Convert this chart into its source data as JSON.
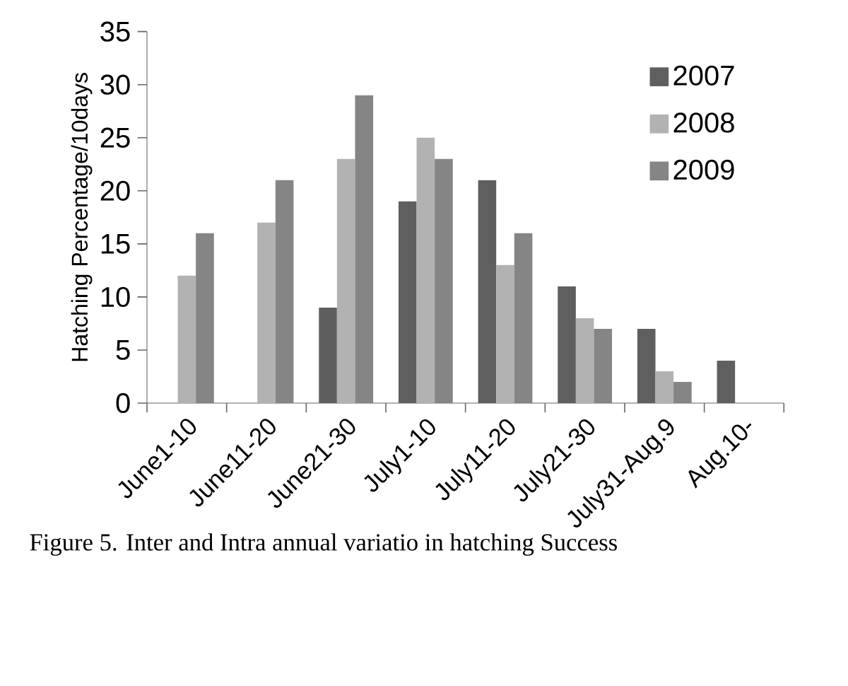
{
  "chart_data": {
    "type": "bar",
    "ylabel": "Hatching Percentage/10days",
    "categories": [
      "June1-10",
      "June11-20",
      "June21-30",
      "July1-10",
      "July11-20",
      "July21-30",
      "July31-Aug.9",
      "Aug.10-"
    ],
    "series": [
      {
        "name": "2007",
        "color": "#5f5f5f",
        "values": [
          null,
          null,
          9,
          19,
          21,
          11,
          7,
          4
        ]
      },
      {
        "name": "2008",
        "color": "#b2b2b2",
        "values": [
          12,
          17,
          23,
          25,
          13,
          8,
          3,
          null
        ]
      },
      {
        "name": "2009",
        "color": "#858585",
        "values": [
          16,
          21,
          29,
          23,
          16,
          7,
          2,
          null
        ]
      }
    ],
    "ylim": [
      0,
      35
    ],
    "yticks": [
      0,
      5,
      10,
      15,
      20,
      25,
      30,
      35
    ],
    "legend": "top right",
    "annotations": [
      "Figure 5. Inter and Intra annual variatio in hatching Success"
    ]
  }
}
